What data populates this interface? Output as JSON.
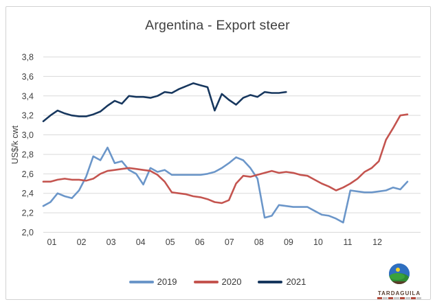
{
  "title": "Argentina - Export steer",
  "chart_data": {
    "type": "line",
    "title": "Argentina - Export steer",
    "ylabel": "US$/k cwt",
    "xlabel": "",
    "ylim": [
      2.0,
      3.8
    ],
    "grid": true,
    "legend_position": "bottom",
    "x_unit": "weekly quotes, months 01-12",
    "x_tick_labels": [
      "01",
      "02",
      "03",
      "04",
      "05",
      "06",
      "07",
      "08",
      "09",
      "10",
      "11",
      "12"
    ],
    "yticks": [
      {
        "value": 2.0,
        "label": "2,0"
      },
      {
        "value": 2.2,
        "label": "2,2"
      },
      {
        "value": 2.4,
        "label": "2,4"
      },
      {
        "value": 2.6,
        "label": "2,6"
      },
      {
        "value": 2.8,
        "label": "2,8"
      },
      {
        "value": 3.0,
        "label": "3,0"
      },
      {
        "value": 3.2,
        "label": "3,2"
      },
      {
        "value": 3.4,
        "label": "3,4"
      },
      {
        "value": 3.6,
        "label": "3,6"
      },
      {
        "value": 3.8,
        "label": "3,8"
      }
    ],
    "series": [
      {
        "name": "2019",
        "color": "#6b96c9",
        "values": [
          2.27,
          2.31,
          2.4,
          2.37,
          2.35,
          2.43,
          2.57,
          2.78,
          2.74,
          2.87,
          2.71,
          2.73,
          2.64,
          2.6,
          2.49,
          2.66,
          2.62,
          2.64,
          2.59,
          2.59,
          2.59,
          2.59,
          2.59,
          2.6,
          2.62,
          2.66,
          2.71,
          2.77,
          2.74,
          2.66,
          2.55,
          2.15,
          2.17,
          2.28,
          2.27,
          2.26,
          2.26,
          2.26,
          2.22,
          2.18,
          2.17,
          2.14,
          2.1,
          2.43,
          2.42,
          2.41,
          2.41,
          2.42,
          2.43,
          2.46,
          2.44,
          2.52
        ]
      },
      {
        "name": "2020",
        "color": "#c4544f",
        "values": [
          2.52,
          2.52,
          2.54,
          2.55,
          2.54,
          2.54,
          2.53,
          2.55,
          2.6,
          2.63,
          2.64,
          2.65,
          2.66,
          2.65,
          2.64,
          2.63,
          2.59,
          2.52,
          2.41,
          2.4,
          2.39,
          2.37,
          2.36,
          2.34,
          2.31,
          2.3,
          2.33,
          2.5,
          2.58,
          2.57,
          2.59,
          2.61,
          2.63,
          2.61,
          2.62,
          2.61,
          2.59,
          2.58,
          2.54,
          2.5,
          2.47,
          2.43,
          2.46,
          2.5,
          2.55,
          2.62,
          2.66,
          2.73,
          2.95,
          3.07,
          3.2,
          3.21
        ]
      },
      {
        "name": "2021",
        "color": "#17375e",
        "values": [
          3.14,
          3.2,
          3.25,
          3.22,
          3.2,
          3.19,
          3.19,
          3.21,
          3.24,
          3.3,
          3.35,
          3.32,
          3.4,
          3.39,
          3.39,
          3.38,
          3.4,
          3.44,
          3.43,
          3.47,
          3.5,
          3.53,
          3.51,
          3.49,
          3.25,
          3.42,
          3.36,
          3.31,
          3.38,
          3.41,
          3.39,
          3.44,
          3.43,
          3.43,
          3.44
        ]
      }
    ]
  },
  "logo": {
    "text": "TARDAGUILA"
  },
  "colors": {
    "grid": "#d9d9d9",
    "axis_text": "#3f3f3f",
    "title_text": "#404040",
    "legend_text": "#363636",
    "border": "#d2d2d2"
  }
}
